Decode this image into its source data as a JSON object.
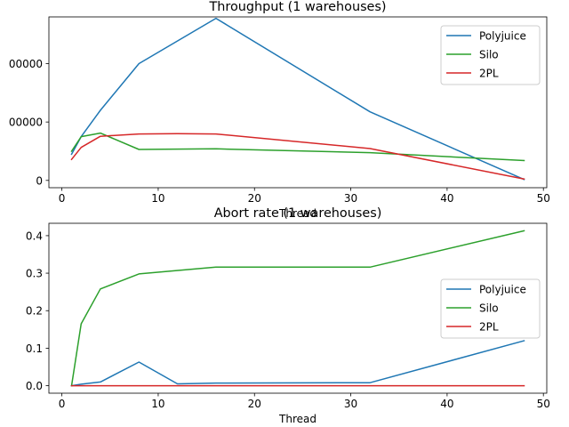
{
  "chart_data": [
    {
      "type": "line",
      "title": "Throughput (1 warehouses)",
      "xlabel": "Thread",
      "ylabel": "",
      "xlim": [
        -1.35,
        50.35
      ],
      "ylim": [
        -25000,
        560000
      ],
      "xticks": [
        0,
        10,
        20,
        30,
        40,
        50
      ],
      "yticks": [
        0,
        200000,
        400000
      ],
      "ytick_labels": [
        "0",
        "00000",
        "00000"
      ],
      "grid": false,
      "legend": "top-right",
      "series": [
        {
          "name": "Polyjuice",
          "color": "#1f77b4",
          "x": [
            1,
            2,
            4,
            8,
            16,
            32,
            48
          ],
          "y": [
            90000,
            150000,
            240000,
            400000,
            555000,
            235000,
            3000
          ]
        },
        {
          "name": "Silo",
          "color": "#2ca02c",
          "x": [
            1,
            2,
            4,
            8,
            16,
            32,
            48
          ],
          "y": [
            100000,
            150000,
            162000,
            106000,
            108000,
            95000,
            68000
          ]
        },
        {
          "name": "2PL",
          "color": "#d62728",
          "x": [
            1,
            2,
            4,
            8,
            12,
            16,
            32,
            48
          ],
          "y": [
            72000,
            113000,
            151000,
            159000,
            160000,
            159000,
            109000,
            5000
          ]
        }
      ]
    },
    {
      "type": "line",
      "title": "Abort rate (1 warehouses)",
      "xlabel": "Thread",
      "ylabel": "",
      "xlim": [
        -1.35,
        50.35
      ],
      "ylim": [
        -0.02,
        0.433
      ],
      "xticks": [
        0,
        10,
        20,
        30,
        40,
        50
      ],
      "yticks": [
        0.0,
        0.1,
        0.2,
        0.3,
        0.4
      ],
      "ytick_labels": [
        "0.0",
        "0.1",
        "0.2",
        "0.3",
        "0.4"
      ],
      "grid": false,
      "legend": "center-right",
      "series": [
        {
          "name": "Polyjuice",
          "color": "#1f77b4",
          "x": [
            1,
            2,
            4,
            8,
            12,
            16,
            32,
            48
          ],
          "y": [
            0.0,
            0.004,
            0.01,
            0.063,
            0.005,
            0.007,
            0.008,
            0.12
          ]
        },
        {
          "name": "Silo",
          "color": "#2ca02c",
          "x": [
            1,
            2,
            4,
            8,
            16,
            32,
            48
          ],
          "y": [
            0.0,
            0.165,
            0.258,
            0.298,
            0.316,
            0.316,
            0.413
          ]
        },
        {
          "name": "2PL",
          "color": "#d62728",
          "x": [
            1,
            2,
            4,
            8,
            16,
            32,
            48
          ],
          "y": [
            0.0,
            0.0,
            0.0,
            0.0,
            0.0,
            0.0,
            0.0
          ]
        }
      ]
    }
  ]
}
